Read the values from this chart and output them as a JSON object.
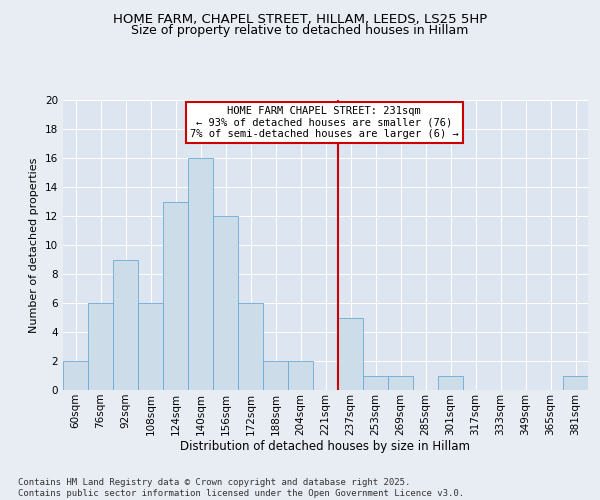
{
  "title1": "HOME FARM, CHAPEL STREET, HILLAM, LEEDS, LS25 5HP",
  "title2": "Size of property relative to detached houses in Hillam",
  "xlabel": "Distribution of detached houses by size in Hillam",
  "ylabel": "Number of detached properties",
  "footer": "Contains HM Land Registry data © Crown copyright and database right 2025.\nContains public sector information licensed under the Open Government Licence v3.0.",
  "bin_labels": [
    "60sqm",
    "76sqm",
    "92sqm",
    "108sqm",
    "124sqm",
    "140sqm",
    "156sqm",
    "172sqm",
    "188sqm",
    "204sqm",
    "221sqm",
    "237sqm",
    "253sqm",
    "269sqm",
    "285sqm",
    "301sqm",
    "317sqm",
    "333sqm",
    "349sqm",
    "365sqm",
    "381sqm"
  ],
  "bar_values": [
    2,
    6,
    9,
    6,
    13,
    16,
    12,
    6,
    2,
    2,
    0,
    5,
    1,
    1,
    0,
    1,
    0,
    0,
    0,
    0,
    1
  ],
  "bar_color": "#ccdce8",
  "bar_edge_color": "#6aaad4",
  "vline_x": 10.5,
  "annotation_line1": "HOME FARM CHAPEL STREET: 231sqm",
  "annotation_line2": "← 93% of detached houses are smaller (76)",
  "annotation_line3": "7% of semi-detached houses are larger (6) →",
  "annotation_box_color": "#ffffff",
  "annotation_box_edge_color": "#cc0000",
  "vline_color": "#cc0000",
  "ylim": [
    0,
    20
  ],
  "yticks": [
    0,
    2,
    4,
    6,
    8,
    10,
    12,
    14,
    16,
    18,
    20
  ],
  "background_color": "#e8edf4",
  "plot_background_color": "#dce5f0",
  "grid_color": "#ffffff",
  "title1_fontsize": 9.5,
  "title2_fontsize": 9.0,
  "ylabel_fontsize": 8,
  "xlabel_fontsize": 8.5,
  "tick_fontsize": 7.5,
  "annot_fontsize": 7.5,
  "footer_fontsize": 6.5
}
